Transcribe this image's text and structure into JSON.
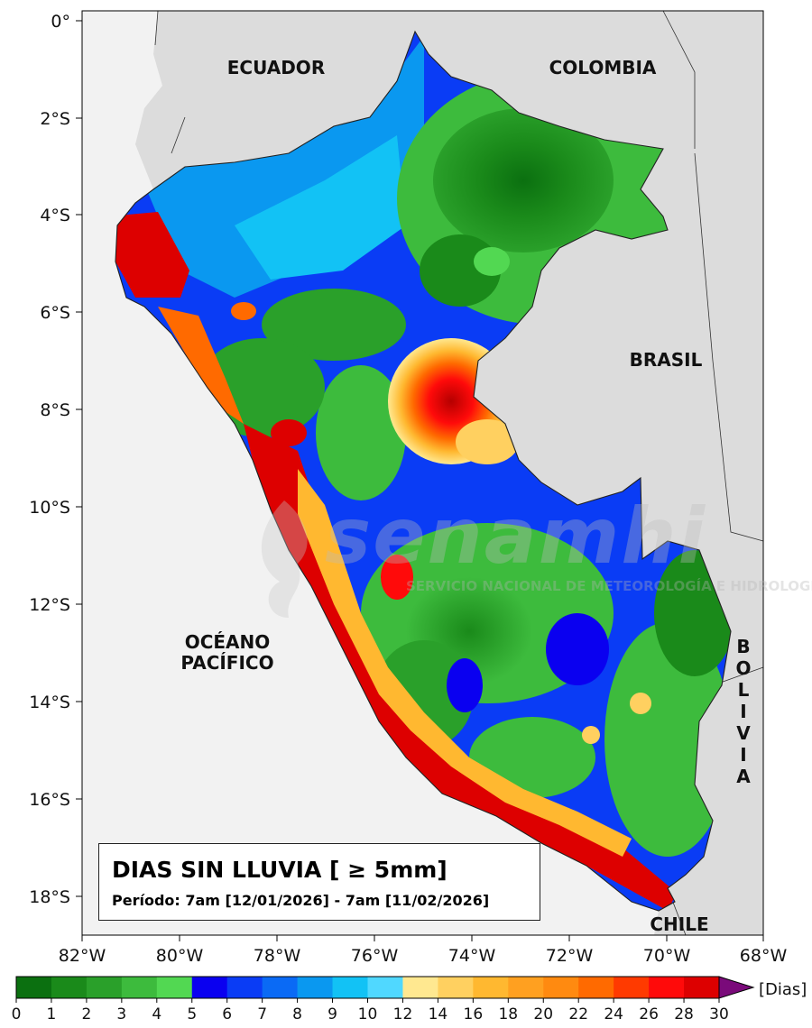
{
  "map": {
    "x_ticks": [
      "82°W",
      "80°W",
      "78°W",
      "76°W",
      "74°W",
      "72°W",
      "70°W",
      "68°W"
    ],
    "y_ticks": [
      "0°",
      "2°S",
      "4°S",
      "6°S",
      "8°S",
      "10°S",
      "12°S",
      "14°S",
      "16°S",
      "18°S"
    ],
    "countries": {
      "ecuador": "ECUADOR",
      "colombia": "COLOMBIA",
      "brasil": "BRASIL",
      "chile": "CHILE",
      "bolivia_letters": [
        "B",
        "O",
        "L",
        "I",
        "V",
        "I",
        "A"
      ],
      "ocean_line1": "OCÉANO",
      "ocean_line2": "PACÍFICO"
    },
    "legend": {
      "title": "DIAS SIN LLUVIA [ ≥ 5mm]",
      "period": "Período: 7am [12/01/2026] - 7am [11/02/2026]"
    },
    "watermark": {
      "brand": "senamhi",
      "subtitle": "SERVICIO NACIONAL DE METEOROLOGÍA E HIDROLOGÍA DEL PERÚ"
    }
  },
  "colorbar": {
    "ticks": [
      "0",
      "1",
      "2",
      "3",
      "4",
      "5",
      "6",
      "7",
      "8",
      "9",
      "10",
      "12",
      "14",
      "16",
      "18",
      "20",
      "22",
      "24",
      "26",
      "28",
      "30"
    ],
    "unit": "[Dias]",
    "colors": [
      "#0b7010",
      "#1a8a1a",
      "#2aa02a",
      "#3dbb3d",
      "#52d852",
      "#0a00f0",
      "#0a3cf5",
      "#0a6af5",
      "#0a98f0",
      "#12c2f5",
      "#50d8ff",
      "#ffe890",
      "#ffd060",
      "#ffb830",
      "#ffa020",
      "#ff8a10",
      "#ff6a00",
      "#ff3a00",
      "#ff0a0a",
      "#dd0000",
      "#b50000"
    ],
    "extend_color": "#7a0a7a"
  }
}
